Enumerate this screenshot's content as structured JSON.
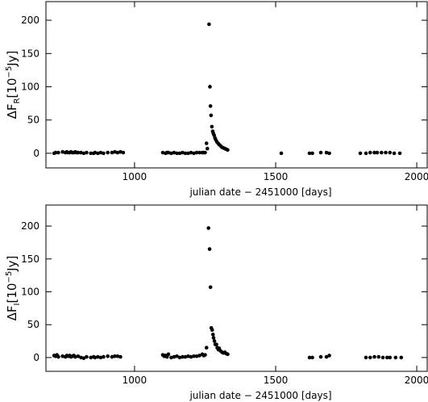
{
  "chart_data": [
    {
      "type": "scatter",
      "xlabel": "julian date − 2451000 [days]",
      "ylabel_parts": [
        "ΔF",
        "R",
        "[10",
        "−5",
        "Jy]"
      ],
      "color": "#000000",
      "xlim": [
        686,
        2037
      ],
      "xticks": [
        1000,
        1500,
        2000
      ],
      "ylim": [
        -22,
        228
      ],
      "yticks": [
        0,
        50,
        100,
        150,
        200
      ],
      "x": [
        715,
        720,
        730,
        745,
        755,
        760,
        765,
        770,
        775,
        780,
        785,
        790,
        795,
        800,
        810,
        820,
        830,
        845,
        855,
        860,
        870,
        880,
        890,
        905,
        920,
        930,
        940,
        950,
        960,
        1100,
        1110,
        1115,
        1120,
        1130,
        1140,
        1150,
        1160,
        1170,
        1180,
        1190,
        1200,
        1210,
        1220,
        1230,
        1240,
        1245,
        1250,
        1255,
        1258,
        1264,
        1267,
        1269,
        1271,
        1274,
        1277,
        1279,
        1282,
        1285,
        1288,
        1292,
        1296,
        1300,
        1305,
        1310,
        1315,
        1320,
        1325,
        1330,
        1520,
        1620,
        1630,
        1660,
        1680,
        1690,
        1800,
        1820,
        1835,
        1850,
        1860,
        1875,
        1890,
        1905,
        1920,
        1940
      ],
      "y": [
        0,
        1,
        1,
        2,
        1,
        2,
        1,
        1,
        2,
        1,
        1,
        2,
        1,
        1,
        1,
        0,
        1,
        0,
        0,
        1,
        0,
        1,
        0,
        1,
        1,
        2,
        1,
        2,
        1,
        1,
        0,
        1,
        1,
        0,
        1,
        0,
        0,
        1,
        0,
        0,
        1,
        0,
        1,
        1,
        1,
        1,
        1,
        15,
        7,
        194,
        100,
        71,
        57,
        40,
        33,
        30,
        27,
        23,
        20,
        17,
        15,
        13,
        11,
        9,
        8,
        7,
        6,
        5,
        0,
        0,
        0,
        1,
        1,
        0,
        0,
        0,
        1,
        1,
        1,
        1,
        1,
        1,
        0,
        0
      ]
    },
    {
      "type": "scatter",
      "xlabel": "julian date − 2451000 [days]",
      "ylabel_parts": [
        "ΔF",
        "I",
        "[10",
        "−5",
        "Jy]"
      ],
      "color": "#000000",
      "xlim": [
        686,
        2037
      ],
      "xticks": [
        1000,
        1500,
        2000
      ],
      "ylim": [
        -21,
        232
      ],
      "yticks": [
        0,
        50,
        100,
        150,
        200
      ],
      "x": [
        715,
        720,
        725,
        730,
        745,
        755,
        760,
        765,
        770,
        775,
        780,
        785,
        790,
        800,
        810,
        820,
        830,
        845,
        855,
        860,
        870,
        880,
        890,
        905,
        920,
        930,
        940,
        950,
        1100,
        1105,
        1110,
        1115,
        1120,
        1130,
        1140,
        1150,
        1160,
        1170,
        1180,
        1190,
        1200,
        1210,
        1220,
        1230,
        1240,
        1245,
        1250,
        1255,
        1262,
        1266,
        1269,
        1272,
        1275,
        1278,
        1280,
        1283,
        1286,
        1290,
        1293,
        1297,
        1300,
        1305,
        1310,
        1315,
        1320,
        1325,
        1330,
        1620,
        1630,
        1660,
        1680,
        1690,
        1820,
        1835,
        1850,
        1865,
        1880,
        1895,
        1905,
        1925,
        1945
      ],
      "y": [
        3,
        2,
        4,
        1,
        2,
        1,
        3,
        2,
        3,
        1,
        2,
        3,
        1,
        2,
        0,
        -1,
        1,
        0,
        1,
        0,
        1,
        0,
        1,
        2,
        1,
        2,
        2,
        1,
        4,
        2,
        3,
        1,
        5,
        0,
        1,
        2,
        0,
        1,
        1,
        2,
        1,
        2,
        2,
        3,
        5,
        3,
        4,
        15,
        197,
        165,
        107,
        45,
        42,
        35,
        30,
        25,
        20,
        20,
        15,
        12,
        14,
        10,
        8,
        7,
        8,
        6,
        5,
        0,
        0,
        1,
        1,
        3,
        0,
        0,
        1,
        1,
        0,
        0,
        0,
        0,
        0
      ]
    }
  ]
}
